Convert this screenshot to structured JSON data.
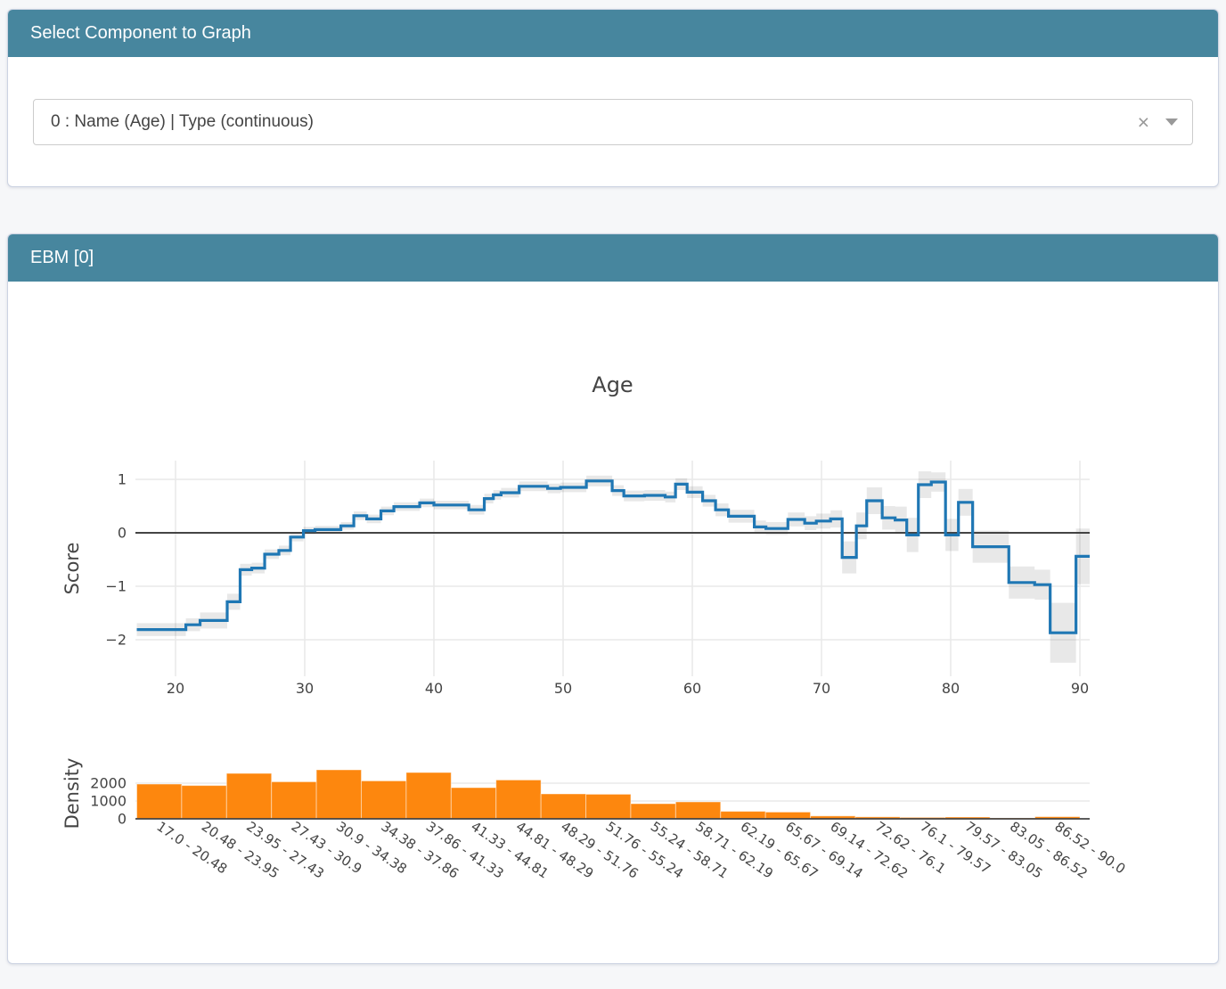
{
  "select_panel": {
    "title": "Select Component to Graph",
    "dropdown": {
      "value": "0 : Name (Age) | Type (continuous)",
      "clear_icon": "×"
    }
  },
  "ebm_panel": {
    "title": "EBM [0]"
  },
  "colors": {
    "header_bg": "#47869e",
    "header_text": "#ffffff",
    "page_bg": "#f6f7f9",
    "axis_text": "#444444",
    "gridline": "#e9e9e9",
    "zero_line": "#444444"
  },
  "chart_data": {
    "type": "line",
    "subtype": "ebm-continuous-feature-step-with-density-histogram",
    "title": "Age",
    "main_plot": {
      "ylabel": "Score",
      "xlim": [
        17,
        90.8
      ],
      "ylim": [
        -2.68,
        1.35
      ],
      "grid": true,
      "zero_line": true,
      "line_color": "#1f77b4",
      "error_band_color": "rgba(68,68,68,0.12)",
      "xticks": [
        "20",
        "30",
        "40",
        "50",
        "60",
        "70",
        "80",
        "90"
      ],
      "xtick_values": [
        20,
        30,
        40,
        50,
        60,
        70,
        80,
        90
      ],
      "yticks": [
        "1",
        "0",
        "−1",
        "−2"
      ],
      "ytick_values": [
        1,
        0,
        -1,
        -2
      ],
      "steps_format": [
        "age_start",
        "age_end",
        "score",
        "error_halfwidth"
      ],
      "steps": [
        [
          17.0,
          20.8,
          -1.81,
          0.12
        ],
        [
          20.8,
          21.9,
          -1.72,
          0.12
        ],
        [
          21.9,
          24.0,
          -1.64,
          0.15
        ],
        [
          24.0,
          25.0,
          -1.29,
          0.15
        ],
        [
          25.0,
          25.9,
          -0.69,
          0.11
        ],
        [
          25.9,
          26.9,
          -0.66,
          0.1
        ],
        [
          26.9,
          28.0,
          -0.4,
          0.09
        ],
        [
          28.0,
          28.9,
          -0.33,
          0.09
        ],
        [
          28.9,
          29.9,
          -0.08,
          0.08
        ],
        [
          29.9,
          30.8,
          0.04,
          0.07
        ],
        [
          30.8,
          32.8,
          0.06,
          0.07
        ],
        [
          32.8,
          33.8,
          0.13,
          0.07
        ],
        [
          33.8,
          34.8,
          0.32,
          0.08
        ],
        [
          34.8,
          35.9,
          0.26,
          0.08
        ],
        [
          35.9,
          36.9,
          0.41,
          0.08
        ],
        [
          36.9,
          38.9,
          0.49,
          0.08
        ],
        [
          38.9,
          40.0,
          0.56,
          0.08
        ],
        [
          40.0,
          42.7,
          0.52,
          0.08
        ],
        [
          42.7,
          43.9,
          0.43,
          0.09
        ],
        [
          43.9,
          44.6,
          0.64,
          0.09
        ],
        [
          44.6,
          45.2,
          0.71,
          0.09
        ],
        [
          45.2,
          46.6,
          0.75,
          0.09
        ],
        [
          46.6,
          48.8,
          0.87,
          0.09
        ],
        [
          48.8,
          49.8,
          0.83,
          0.09
        ],
        [
          49.8,
          51.8,
          0.85,
          0.09
        ],
        [
          51.8,
          53.8,
          0.97,
          0.1
        ],
        [
          53.8,
          54.7,
          0.79,
          0.1
        ],
        [
          54.7,
          56.3,
          0.69,
          0.1
        ],
        [
          56.3,
          57.9,
          0.7,
          0.1
        ],
        [
          57.9,
          58.7,
          0.67,
          0.1
        ],
        [
          58.7,
          59.6,
          0.91,
          0.11
        ],
        [
          59.6,
          60.8,
          0.76,
          0.11
        ],
        [
          60.8,
          61.8,
          0.6,
          0.11
        ],
        [
          61.8,
          62.8,
          0.43,
          0.12
        ],
        [
          62.8,
          64.8,
          0.31,
          0.12
        ],
        [
          64.8,
          65.7,
          0.11,
          0.12
        ],
        [
          65.7,
          67.4,
          0.08,
          0.12
        ],
        [
          67.4,
          68.7,
          0.25,
          0.13
        ],
        [
          68.7,
          69.6,
          0.18,
          0.13
        ],
        [
          69.6,
          70.7,
          0.22,
          0.14
        ],
        [
          70.7,
          71.6,
          0.26,
          0.16
        ],
        [
          71.6,
          72.7,
          -0.46,
          0.3
        ],
        [
          72.7,
          73.5,
          0.13,
          0.25
        ],
        [
          73.5,
          74.7,
          0.6,
          0.25
        ],
        [
          74.7,
          75.7,
          0.28,
          0.22
        ],
        [
          75.7,
          76.6,
          0.24,
          0.25
        ],
        [
          76.6,
          77.5,
          -0.04,
          0.32
        ],
        [
          77.5,
          78.5,
          0.9,
          0.25
        ],
        [
          78.5,
          79.6,
          0.95,
          0.18
        ],
        [
          79.6,
          80.6,
          -0.04,
          0.3
        ],
        [
          80.6,
          81.7,
          0.57,
          0.25
        ],
        [
          81.7,
          84.5,
          -0.26,
          0.3
        ],
        [
          84.5,
          86.5,
          -0.93,
          0.3
        ],
        [
          86.5,
          87.7,
          -0.97,
          0.28
        ],
        [
          87.7,
          89.7,
          -1.87,
          0.56
        ],
        [
          89.7,
          91.0,
          -0.44,
          0.52
        ]
      ]
    },
    "density_plot": {
      "ylabel": "Density",
      "ylim": [
        0,
        3150
      ],
      "bar_color": "#fd870e",
      "yticks": [
        "0",
        "1000",
        "2000"
      ],
      "ytick_values": [
        0,
        1000,
        2000
      ],
      "bin_labels": [
        "17.0 - 20.48",
        "20.48 - 23.95",
        "23.95 - 27.43",
        "27.43 - 30.9",
        "30.9 - 34.38",
        "34.38 - 37.86",
        "37.86 - 41.33",
        "41.33 - 44.81",
        "44.81 - 48.29",
        "48.29 - 51.76",
        "51.76 - 55.24",
        "55.24 - 58.71",
        "58.71 - 62.19",
        "62.19 - 65.67",
        "65.67 - 69.14",
        "69.14 - 72.62",
        "72.62 - 76.1",
        "76.1 - 79.57",
        "79.57 - 83.05",
        "83.05 - 86.52",
        "86.52 - 90.0"
      ],
      "bin_values": [
        1950,
        1870,
        2550,
        2080,
        2750,
        2130,
        2600,
        1750,
        2180,
        1400,
        1380,
        850,
        950,
        420,
        380,
        160,
        110,
        80,
        100,
        50,
        120
      ]
    }
  }
}
